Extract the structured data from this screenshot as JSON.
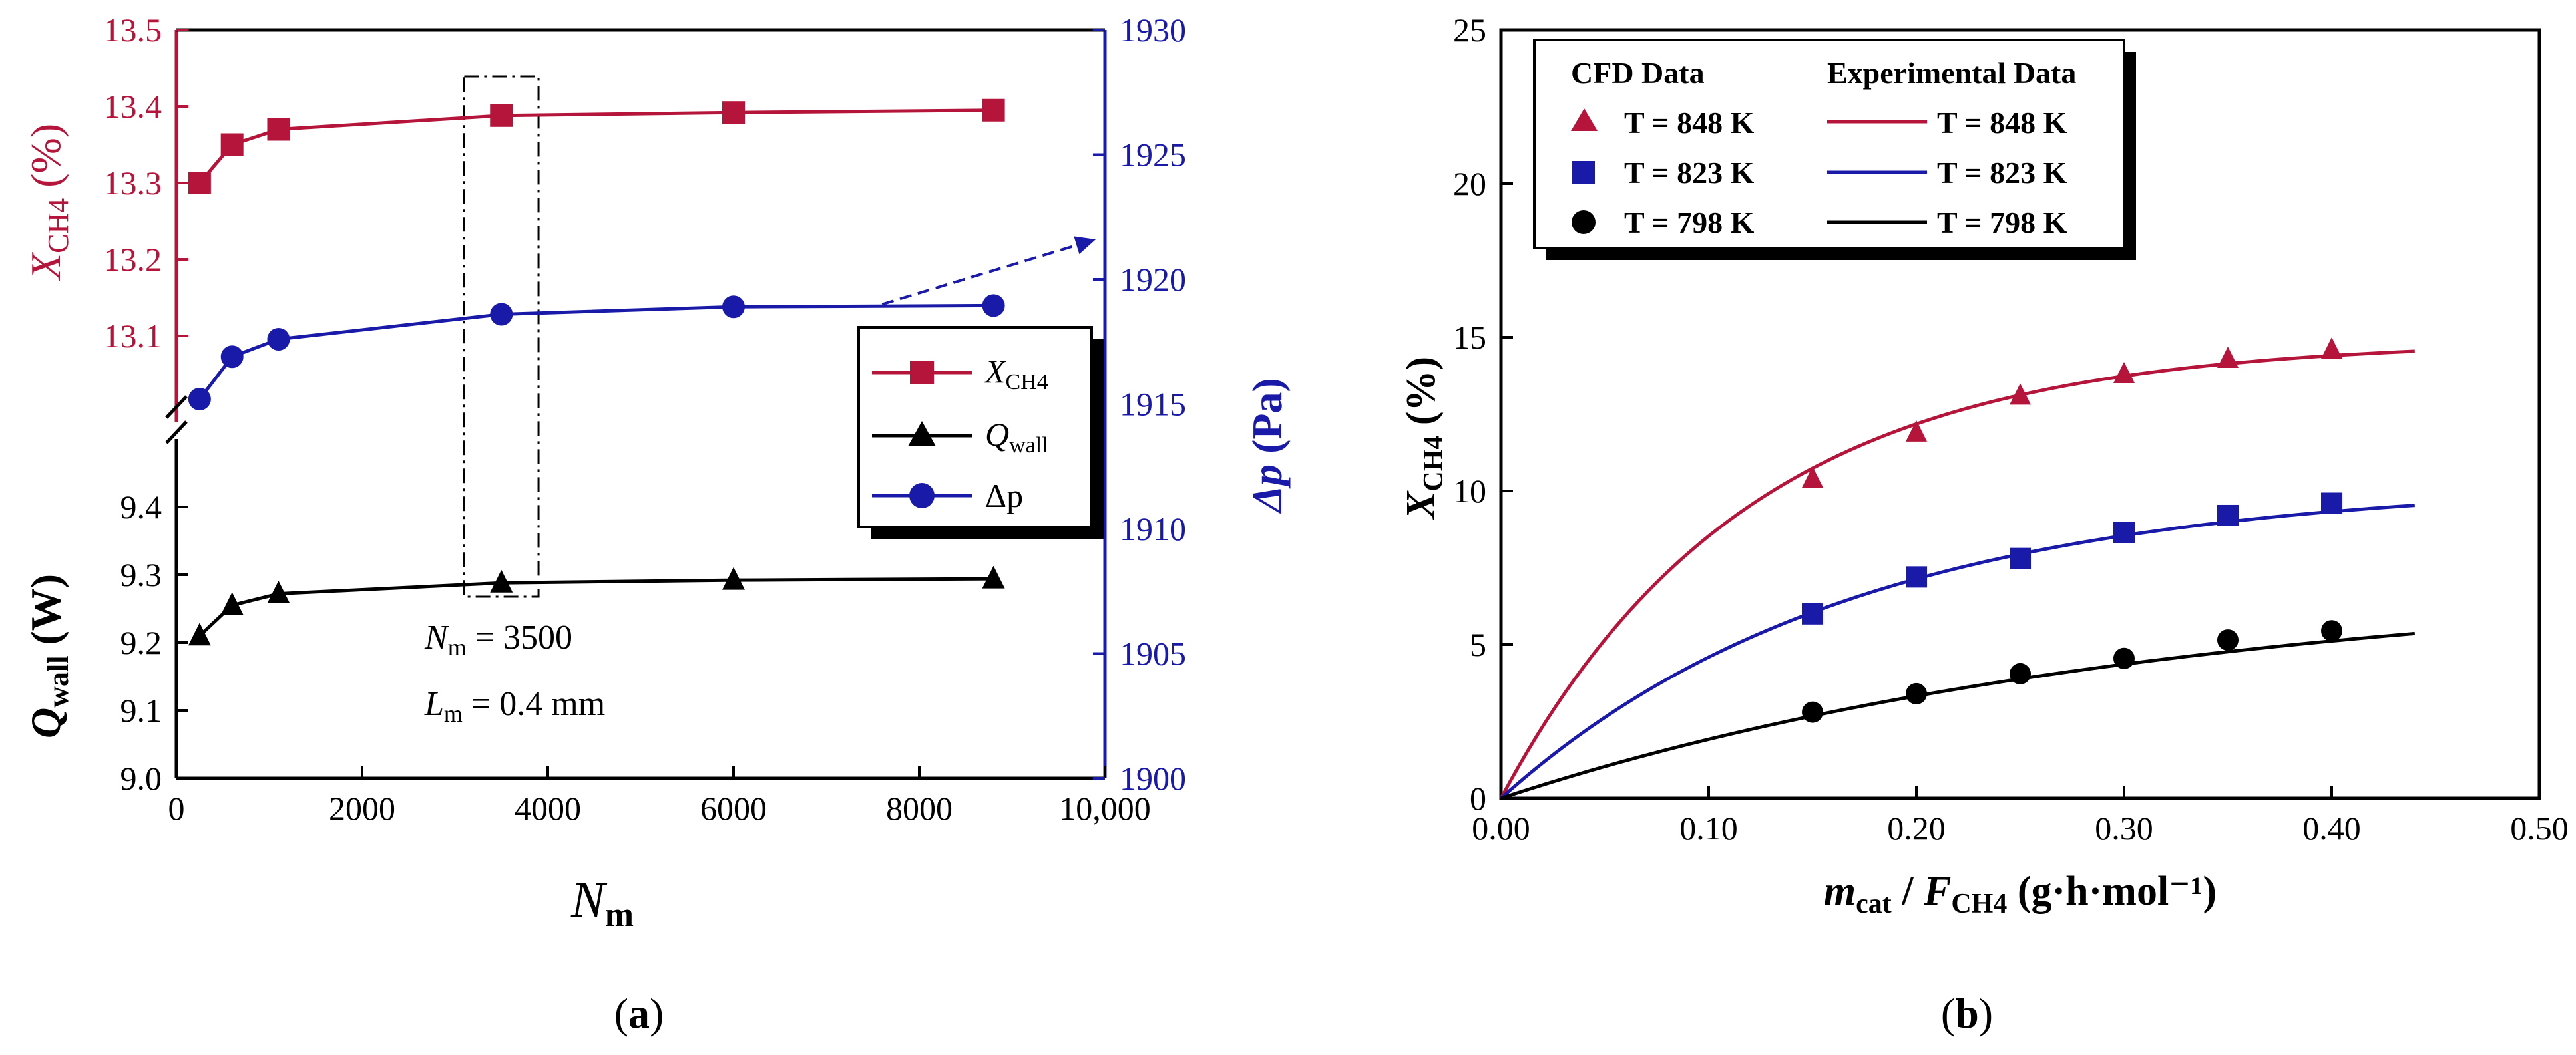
{
  "figure": {
    "panel_a_label": "a",
    "panel_b_label": "b",
    "colors": {
      "red": "#b5153a",
      "blue": "#1a1aa8",
      "black": "#000000"
    }
  },
  "chart_data": [
    {
      "type": "line",
      "panel": "a",
      "title": "",
      "xlabel": {
        "main": "N",
        "sub": "m"
      },
      "xlim": [
        0,
        10000
      ],
      "xticks": [
        {
          "value": 0,
          "label": "0"
        },
        {
          "value": 2000,
          "label": "2000"
        },
        {
          "value": 4000,
          "label": "4000"
        },
        {
          "value": 6000,
          "label": "6000"
        },
        {
          "value": 8000,
          "label": "8000"
        },
        {
          "value": 10000,
          "label": "10,000"
        }
      ],
      "left_upper_axis": {
        "label_main": "X",
        "label_sub": "CH4",
        "label_unit": "(%)",
        "ylim": [
          13.0,
          13.5
        ],
        "ticks": [
          {
            "value": 13.1,
            "label": "13.1"
          },
          {
            "value": 13.2,
            "label": "13.2"
          },
          {
            "value": 13.3,
            "label": "13.3"
          },
          {
            "value": 13.4,
            "label": "13.4"
          },
          {
            "value": 13.5,
            "label": "13.5"
          }
        ]
      },
      "left_lower_axis": {
        "label_main": "Q",
        "label_sub": "wall",
        "label_unit": "(W)",
        "ylim": [
          9.0,
          9.5
        ],
        "ticks": [
          {
            "value": 9.0,
            "label": "9.0"
          },
          {
            "value": 9.1,
            "label": "9.1"
          },
          {
            "value": 9.2,
            "label": "9.2"
          },
          {
            "value": 9.3,
            "label": "9.3"
          },
          {
            "value": 9.4,
            "label": "9.4"
          }
        ]
      },
      "right_axis": {
        "label_main": "Δp",
        "label_unit": "(Pa)",
        "ylim": [
          1900,
          1930
        ],
        "ticks": [
          {
            "value": 1900,
            "label": "1900"
          },
          {
            "value": 1905,
            "label": "1905"
          },
          {
            "value": 1910,
            "label": "1910"
          },
          {
            "value": 1915,
            "label": "1915"
          },
          {
            "value": 1920,
            "label": "1920"
          },
          {
            "value": 1925,
            "label": "1925"
          },
          {
            "value": 1930,
            "label": "1930"
          }
        ]
      },
      "series": [
        {
          "name": "X_CH4",
          "legend_main": "X",
          "legend_sub": "CH4",
          "axis": "left_upper",
          "marker": "square",
          "color": "#b5153a",
          "x": [
            250,
            600,
            1100,
            3500,
            6000,
            8800
          ],
          "y": [
            13.3,
            13.35,
            13.37,
            13.388,
            13.392,
            13.395
          ]
        },
        {
          "name": "Q_wall",
          "legend_main": "Q",
          "legend_sub": "wall",
          "axis": "left_lower",
          "marker": "triangle",
          "color": "#000000",
          "x": [
            250,
            600,
            1100,
            3500,
            6000,
            8800
          ],
          "y": [
            9.21,
            9.255,
            9.272,
            9.288,
            9.292,
            9.294
          ]
        },
        {
          "name": "Δp",
          "legend_main": "Δp",
          "legend_sub": "",
          "axis": "right",
          "marker": "circle",
          "color": "#1a1aa8",
          "x": [
            250,
            600,
            1100,
            3500,
            6000,
            8800
          ],
          "y": [
            1915.2,
            1916.9,
            1917.6,
            1918.6,
            1918.9,
            1918.95
          ]
        }
      ],
      "annotations": {
        "selected_box_x": [
          3100,
          3900
        ],
        "text_nm_main": "N",
        "text_nm_sub": "m",
        "text_nm_value": " = 3500",
        "text_lm_main": "L",
        "text_lm_sub": "m",
        "text_lm_value": " = 0.4 mm",
        "arrow_from": [
          7600,
          1919.0
        ],
        "arrow_to": [
          9900,
          1921.6
        ]
      },
      "legend_position": "right-middle"
    },
    {
      "type": "scatter",
      "panel": "b",
      "title": "",
      "xlabel": {
        "m": "m",
        "m_sub": "cat",
        "sep": " / ",
        "f": "F",
        "f_sub": "CH4",
        "unit": " (g·h·mol⁻¹)"
      },
      "ylabel": {
        "main": "X",
        "sub": "CH4",
        "unit": " (%)"
      },
      "xlim": [
        0,
        0.5
      ],
      "ylim": [
        0,
        25
      ],
      "xticks": [
        {
          "value": 0,
          "label": "0.00"
        },
        {
          "value": 0.1,
          "label": "0.10"
        },
        {
          "value": 0.2,
          "label": "0.20"
        },
        {
          "value": 0.3,
          "label": "0.30"
        },
        {
          "value": 0.4,
          "label": "0.40"
        },
        {
          "value": 0.5,
          "label": "0.50"
        }
      ],
      "yticks": [
        {
          "value": 0,
          "label": "0"
        },
        {
          "value": 5,
          "label": "5"
        },
        {
          "value": 10,
          "label": "10"
        },
        {
          "value": 15,
          "label": "15"
        },
        {
          "value": 20,
          "label": "20"
        },
        {
          "value": 25,
          "label": "25"
        }
      ],
      "legend": {
        "header_cfd": "CFD Data",
        "header_exp": "Experimental Data",
        "entries": [
          "T = 848 K",
          "T = 823 K",
          "T = 798 K"
        ]
      },
      "series": [
        {
          "name": "T = 848 K",
          "color": "#b5153a",
          "marker": "triangle",
          "cfd_x": [
            0.15,
            0.2,
            0.25,
            0.3,
            0.35,
            0.4
          ],
          "cfd_y": [
            10.4,
            11.9,
            13.1,
            13.8,
            14.3,
            14.6
          ],
          "curve": {
            "a": 14.9,
            "k": 8.5
          }
        },
        {
          "name": "T = 823 K",
          "color": "#1a1aa8",
          "marker": "square",
          "cfd_x": [
            0.15,
            0.2,
            0.25,
            0.3,
            0.35,
            0.4
          ],
          "cfd_y": [
            6.0,
            7.2,
            7.8,
            8.65,
            9.2,
            9.6
          ],
          "curve": {
            "a": 10.3,
            "k": 5.9
          }
        },
        {
          "name": "T = 798 K",
          "color": "#000000",
          "marker": "circle",
          "cfd_x": [
            0.15,
            0.2,
            0.25,
            0.3,
            0.35,
            0.4
          ],
          "cfd_y": [
            2.8,
            3.4,
            4.05,
            4.55,
            5.15,
            5.45
          ],
          "curve": {
            "a": 7.2,
            "k": 3.1
          }
        }
      ],
      "curve_x_max": 0.44
    }
  ]
}
